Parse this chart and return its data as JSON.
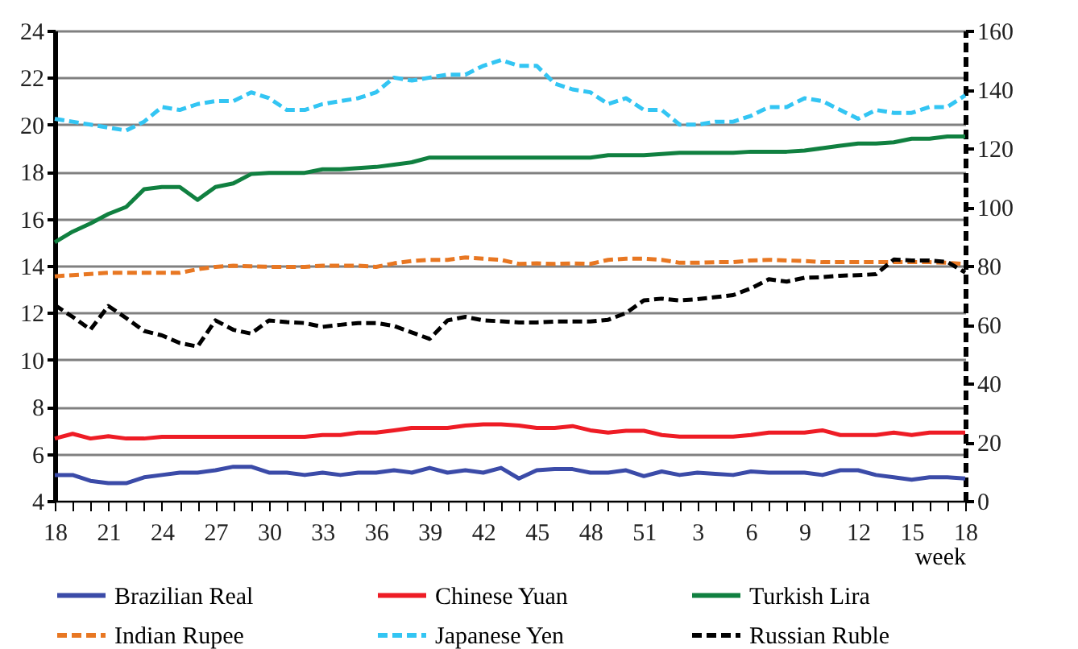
{
  "chart_data": {
    "type": "line",
    "categories": [
      "18",
      null,
      null,
      "21",
      null,
      null,
      "24",
      null,
      null,
      "27",
      null,
      null,
      "30",
      null,
      null,
      "33",
      null,
      null,
      "36",
      null,
      null,
      "39",
      null,
      null,
      "42",
      null,
      null,
      "45",
      null,
      null,
      "48",
      null,
      null,
      "51",
      null,
      null,
      "3",
      null,
      null,
      "6",
      null,
      null,
      "9",
      null,
      null,
      "12",
      null,
      null,
      "15",
      null,
      null,
      "18"
    ],
    "xlabel": "week",
    "ylim": [
      4,
      24
    ],
    "yticks": [
      4,
      6,
      8,
      10,
      12,
      14,
      16,
      18,
      20,
      22,
      24
    ],
    "y2lim": [
      0,
      160
    ],
    "y2ticks": [
      0,
      20,
      40,
      60,
      80,
      100,
      120,
      140,
      160
    ],
    "grid": "y",
    "legend": "bottom",
    "series": [
      {
        "name": "Brazilian Real",
        "color": "#3b4ba8",
        "line_style": "solid",
        "values": [
          5.1,
          5.1,
          4.85,
          4.75,
          4.75,
          5.0,
          5.1,
          5.2,
          5.2,
          5.3,
          5.45,
          5.45,
          5.2,
          5.2,
          5.1,
          5.2,
          5.1,
          5.2,
          5.2,
          5.3,
          5.2,
          5.4,
          5.2,
          5.3,
          5.2,
          5.4,
          4.95,
          5.3,
          5.35,
          5.35,
          5.2,
          5.2,
          5.3,
          5.05,
          5.25,
          5.1,
          5.2,
          5.15,
          5.1,
          5.25,
          5.2,
          5.2,
          5.2,
          5.1,
          5.3,
          5.3,
          5.1,
          5.0,
          4.9,
          5.0,
          5.0,
          4.95
        ]
      },
      {
        "name": "Chinese Yuan",
        "color": "#ee1c25",
        "line_style": "solid",
        "values": [
          6.65,
          6.85,
          6.65,
          6.75,
          6.65,
          6.65,
          6.72,
          6.72,
          6.72,
          6.72,
          6.72,
          6.72,
          6.72,
          6.72,
          6.72,
          6.8,
          6.8,
          6.9,
          6.9,
          7.0,
          7.1,
          7.1,
          7.1,
          7.2,
          7.25,
          7.25,
          7.2,
          7.1,
          7.1,
          7.18,
          7.0,
          6.9,
          6.98,
          6.98,
          6.8,
          6.73,
          6.73,
          6.73,
          6.73,
          6.8,
          6.9,
          6.9,
          6.9,
          7.0,
          6.8,
          6.8,
          6.8,
          6.9,
          6.8,
          6.9,
          6.9,
          6.9
        ]
      },
      {
        "name": "Turkish Lira",
        "color": "#108040",
        "line_style": "solid",
        "values": [
          15.0,
          15.45,
          15.8,
          16.2,
          16.5,
          17.25,
          17.35,
          17.35,
          16.8,
          17.35,
          17.5,
          17.9,
          17.95,
          17.95,
          17.95,
          18.1,
          18.1,
          18.15,
          18.2,
          18.3,
          18.4,
          18.6,
          18.6,
          18.6,
          18.6,
          18.6,
          18.6,
          18.6,
          18.6,
          18.6,
          18.6,
          18.7,
          18.7,
          18.7,
          18.75,
          18.8,
          18.8,
          18.8,
          18.8,
          18.85,
          18.85,
          18.85,
          18.9,
          19.0,
          19.1,
          19.2,
          19.2,
          19.25,
          19.4,
          19.4,
          19.5,
          19.5
        ]
      },
      {
        "name": "Indian Rupee",
        "color": "#e87722",
        "line_style": "dashed",
        "axis": "y2",
        "values": [
          76.4,
          76.8,
          77.2,
          77.6,
          77.6,
          77.6,
          77.6,
          77.6,
          78.8,
          79.6,
          80,
          79.8,
          79.6,
          79.6,
          79.6,
          80,
          80,
          80,
          79.6,
          80.8,
          81.6,
          82,
          82,
          82.8,
          82.4,
          82,
          80.6,
          80.8,
          80.6,
          80.8,
          80.6,
          82,
          82.4,
          82.4,
          82,
          81,
          81,
          81.2,
          81.2,
          81.8,
          82,
          81.8,
          81.6,
          81.2,
          81.2,
          81.2,
          81.2,
          81.2,
          81.2,
          81.2,
          81,
          80.6
        ]
      },
      {
        "name": "Japanese Yen",
        "color": "#33c5f3",
        "line_style": "dashed",
        "axis": "y2",
        "values": [
          130,
          129,
          128,
          127,
          126,
          129,
          134,
          133,
          135,
          136,
          136,
          139,
          137,
          133,
          133,
          135,
          136,
          137,
          139,
          144,
          143,
          144,
          145,
          145,
          148,
          150,
          148,
          148,
          142,
          140,
          139,
          135,
          137,
          133,
          133,
          128,
          128,
          129,
          129,
          131,
          134,
          134,
          137,
          136,
          133,
          130,
          133,
          132,
          132,
          134,
          134,
          138
        ]
      },
      {
        "name": "Russian Ruble",
        "color": "#000000",
        "line_style": "dashed",
        "axis": "y2",
        "values": [
          66.6,
          62.6,
          58.3,
          66.3,
          62.2,
          57.8,
          56.3,
          53.7,
          52.5,
          61.4,
          58.2,
          56.9,
          61.4,
          60.8,
          60.5,
          59.2,
          59.9,
          60.5,
          60.5,
          59.5,
          57.3,
          55.1,
          61.4,
          62.6,
          61.4,
          61.1,
          60.7,
          60.7,
          61,
          61,
          61,
          61.6,
          63.9,
          68.2,
          68.8,
          68.2,
          68.6,
          69.3,
          70,
          72.3,
          75.4,
          74.6,
          75.9,
          76.1,
          76.6,
          76.8,
          77.1,
          82.1,
          81.8,
          81.8,
          81.3,
          77.7
        ]
      }
    ]
  }
}
